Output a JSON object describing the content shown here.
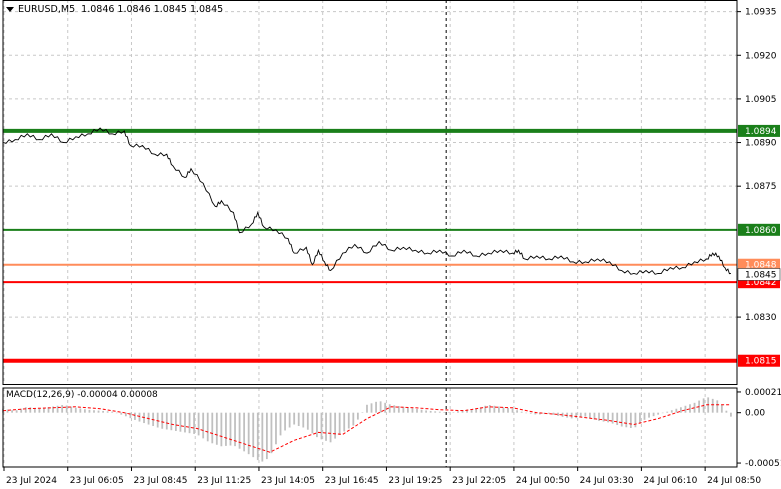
{
  "header": {
    "symbol_tf": "EURUSD,M5",
    "ohlc": "1.0846 1.0846 1.0845 1.0845"
  },
  "macd": {
    "label": "MACD(12,26,9)",
    "values": "-0.00004 0.00008"
  },
  "colors": {
    "background": "#ffffff",
    "grid": "#c8c8c8",
    "price_line": "#000000",
    "level_green": "#1a7f1a",
    "level_red": "#ff0000",
    "bid_line": "#ff8c5a",
    "macd_hist": "#c0c0c0",
    "macd_signal": "#ff0000"
  },
  "chart_data": [
    {
      "type": "line",
      "symbol": "EURUSD",
      "timeframe": "M5",
      "y_ticks": [
        "1.0935",
        "1.0920",
        "1.0905",
        "1.0890",
        "1.0875",
        "1.0830"
      ],
      "ylim": [
        1.0807,
        1.0939
      ],
      "x_ticks": [
        "23 Jul 2024",
        "23 Jul 06:05",
        "23 Jul 08:45",
        "23 Jul 11:25",
        "23 Jul 14:05",
        "23 Jul 16:45",
        "23 Jul 19:25",
        "23 Jul 22:05",
        "24 Jul 00:50",
        "24 Jul 03:30",
        "24 Jul 06:10",
        "24 Jul 08:50"
      ],
      "levels": [
        {
          "value": "1.0894",
          "color": "green",
          "thick": true
        },
        {
          "value": "1.0860",
          "color": "green",
          "thick": false
        },
        {
          "value": "1.0848",
          "color": "orange",
          "thick": false
        },
        {
          "value": "1.0842",
          "color": "red",
          "thick": false
        },
        {
          "value": "1.0815",
          "color": "red",
          "thick": true
        }
      ],
      "current_price": "1.0845",
      "grid": true,
      "session_divider": "23 Jul 22:05",
      "price_series": [
        [
          0,
          1.089
        ],
        [
          4,
          1.0891
        ],
        [
          8,
          1.0893
        ],
        [
          12,
          1.0891
        ],
        [
          16,
          1.0893
        ],
        [
          20,
          1.089
        ],
        [
          24,
          1.0892
        ],
        [
          28,
          1.0893
        ],
        [
          32,
          1.0895
        ],
        [
          36,
          1.0893
        ],
        [
          40,
          1.0894
        ],
        [
          42,
          1.0889
        ],
        [
          46,
          1.0889
        ],
        [
          50,
          1.0886
        ],
        [
          54,
          1.0886
        ],
        [
          56,
          1.0882
        ],
        [
          60,
          1.0878
        ],
        [
          62,
          1.0881
        ],
        [
          66,
          1.0876
        ],
        [
          70,
          1.0868
        ],
        [
          72,
          1.087
        ],
        [
          76,
          1.0866
        ],
        [
          78,
          1.0859
        ],
        [
          82,
          1.0862
        ],
        [
          84,
          1.0866
        ],
        [
          86,
          1.0861
        ],
        [
          90,
          1.086
        ],
        [
          94,
          1.0857
        ],
        [
          96,
          1.0852
        ],
        [
          100,
          1.0854
        ],
        [
          102,
          1.0848
        ],
        [
          104,
          1.0853
        ],
        [
          106,
          1.0849
        ],
        [
          108,
          1.0846
        ],
        [
          112,
          1.0852
        ],
        [
          116,
          1.0855
        ],
        [
          120,
          1.0852
        ],
        [
          124,
          1.0856
        ],
        [
          128,
          1.0853
        ],
        [
          132,
          1.0854
        ],
        [
          136,
          1.0853
        ],
        [
          140,
          1.0852
        ],
        [
          144,
          1.0853
        ],
        [
          148,
          1.0851
        ],
        [
          152,
          1.0853
        ],
        [
          156,
          1.0851
        ],
        [
          160,
          1.0852
        ],
        [
          164,
          1.0853
        ],
        [
          168,
          1.0852
        ],
        [
          170,
          1.0853
        ],
        [
          172,
          1.085
        ],
        [
          176,
          1.0851
        ],
        [
          180,
          1.085
        ],
        [
          184,
          1.0851
        ],
        [
          188,
          1.0849
        ],
        [
          192,
          1.0849
        ],
        [
          196,
          1.085
        ],
        [
          200,
          1.0849
        ],
        [
          204,
          1.0846
        ],
        [
          208,
          1.0845
        ],
        [
          212,
          1.0846
        ],
        [
          216,
          1.0845
        ],
        [
          220,
          1.0847
        ],
        [
          224,
          1.0847
        ],
        [
          228,
          1.0849
        ],
        [
          232,
          1.085
        ],
        [
          234,
          1.0852
        ],
        [
          236,
          1.0851
        ],
        [
          238,
          1.0847
        ],
        [
          240,
          1.0845
        ]
      ]
    },
    {
      "type": "area",
      "name": "MACD",
      "y_ticks": [
        "0.00021",
        "0.00",
        "-0.00051"
      ],
      "ylim": [
        -0.00055,
        0.00025
      ],
      "histogram": [
        [
          0,
          4e-05
        ],
        [
          4,
          2e-05
        ],
        [
          8,
          6e-05
        ],
        [
          12,
          4e-05
        ],
        [
          16,
          6e-05
        ],
        [
          20,
          8e-05
        ],
        [
          24,
          5e-05
        ],
        [
          28,
          3e-05
        ],
        [
          32,
          2e-05
        ],
        [
          36,
          1e-05
        ],
        [
          40,
          -3e-05
        ],
        [
          44,
          -8e-05
        ],
        [
          48,
          -0.00012
        ],
        [
          52,
          -0.00016
        ],
        [
          56,
          -0.00018
        ],
        [
          60,
          -0.0002
        ],
        [
          64,
          -0.00022
        ],
        [
          68,
          -0.0003
        ],
        [
          72,
          -0.00034
        ],
        [
          76,
          -0.00033
        ],
        [
          80,
          -0.0004
        ],
        [
          84,
          -0.00048
        ],
        [
          86,
          -0.0005
        ],
        [
          88,
          -0.00044
        ],
        [
          92,
          -0.0002
        ],
        [
          96,
          -0.00012
        ],
        [
          100,
          -0.00016
        ],
        [
          104,
          -0.00026
        ],
        [
          108,
          -0.0003
        ],
        [
          112,
          -0.0002
        ],
        [
          116,
          -0.00012
        ],
        [
          120,
          8e-05
        ],
        [
          124,
          0.00012
        ],
        [
          128,
          8e-05
        ],
        [
          132,
          6e-05
        ],
        [
          136,
          4e-05
        ],
        [
          140,
          2e-05
        ],
        [
          144,
          1e-05
        ],
        [
          148,
          0.0
        ],
        [
          152,
          3e-05
        ],
        [
          156,
          4e-05
        ],
        [
          160,
          8e-05
        ],
        [
          164,
          6e-05
        ],
        [
          168,
          4e-05
        ],
        [
          172,
          0.0
        ],
        [
          176,
          -2e-05
        ],
        [
          180,
          -1e-05
        ],
        [
          184,
          -4e-05
        ],
        [
          188,
          -6e-05
        ],
        [
          192,
          -4e-05
        ],
        [
          196,
          -8e-05
        ],
        [
          200,
          -0.0001
        ],
        [
          204,
          -0.00014
        ],
        [
          208,
          -0.00016
        ],
        [
          212,
          -6e-05
        ],
        [
          216,
          -2e-05
        ],
        [
          220,
          2e-05
        ],
        [
          224,
          6e-05
        ],
        [
          228,
          0.0001
        ],
        [
          232,
          0.00016
        ],
        [
          236,
          0.00012
        ],
        [
          240,
          -4e-05
        ]
      ],
      "signal": [
        [
          0,
          2e-05
        ],
        [
          8,
          4e-05
        ],
        [
          16,
          5e-05
        ],
        [
          24,
          6e-05
        ],
        [
          32,
          4e-05
        ],
        [
          40,
          0.0
        ],
        [
          48,
          -6e-05
        ],
        [
          56,
          -0.00012
        ],
        [
          64,
          -0.00016
        ],
        [
          72,
          -0.00024
        ],
        [
          80,
          -0.00032
        ],
        [
          88,
          -0.0004
        ],
        [
          96,
          -0.00028
        ],
        [
          104,
          -0.0002
        ],
        [
          112,
          -0.00022
        ],
        [
          120,
          -6e-05
        ],
        [
          128,
          6e-05
        ],
        [
          136,
          5e-05
        ],
        [
          144,
          3e-05
        ],
        [
          152,
          2e-05
        ],
        [
          160,
          6e-05
        ],
        [
          168,
          5e-05
        ],
        [
          176,
          0.0
        ],
        [
          184,
          -2e-05
        ],
        [
          192,
          -5e-05
        ],
        [
          200,
          -8e-05
        ],
        [
          208,
          -0.00012
        ],
        [
          216,
          -6e-05
        ],
        [
          224,
          2e-05
        ],
        [
          232,
          8e-05
        ],
        [
          240,
          8e-05
        ]
      ]
    }
  ]
}
